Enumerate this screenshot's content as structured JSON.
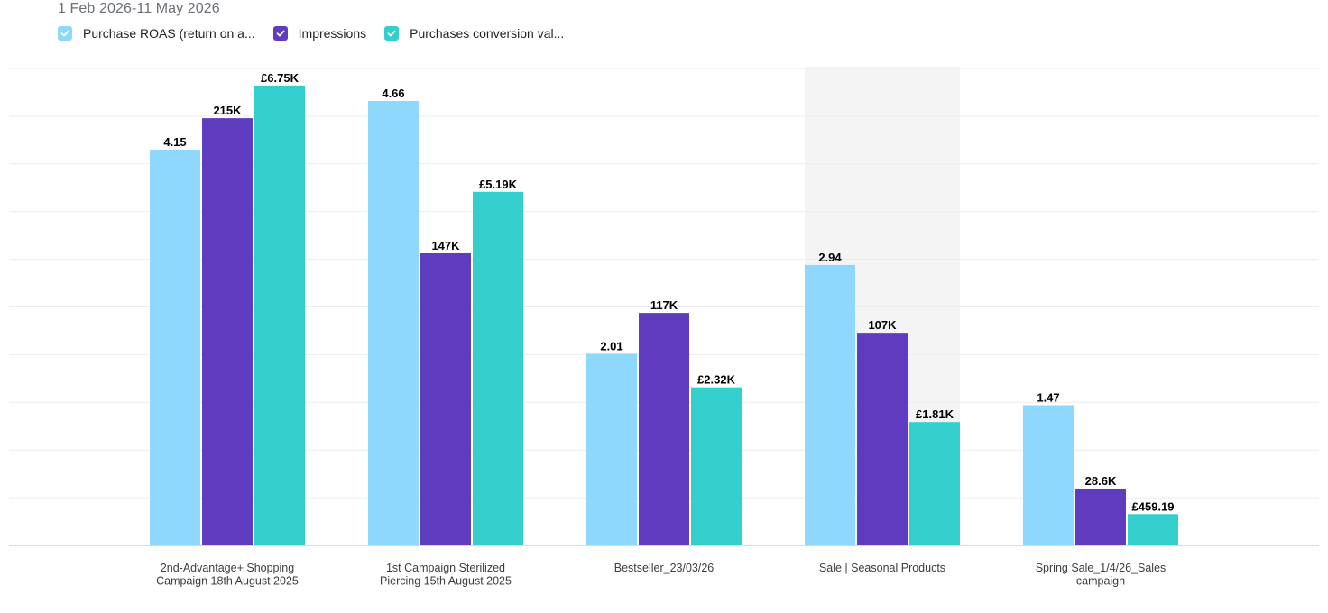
{
  "header": {
    "date_range": "1 Feb 2026-11 May 2026"
  },
  "legend": [
    {
      "label": "Purchase ROAS (return on a...",
      "color": "#8dd8fc",
      "checked": true
    },
    {
      "label": "Impressions",
      "color": "#5e3bbf",
      "checked": true
    },
    {
      "label": "Purchases conversion val...",
      "color": "#33cfcd",
      "checked": true
    }
  ],
  "colors": {
    "grid": "#ececec",
    "highlight": "#f4f4f4",
    "baseline": "#dcdcdc"
  },
  "chart_data": {
    "type": "bar",
    "categories": [
      [
        "2nd-Advantage+ Shopping",
        "Campaign 18th August 2025"
      ],
      [
        "1st Campaign Sterilized",
        "Piercing 15th August 2025"
      ],
      [
        "Bestseller_23/03/26"
      ],
      [
        "Sale | Seasonal Products"
      ],
      [
        "Spring Sale_1/4/26_Sales",
        "campaign"
      ]
    ],
    "highlighted_category_index": 3,
    "series": [
      {
        "name": "Purchase ROAS (return on a...",
        "color": "#8dd8fc",
        "values": [
          4.15,
          4.66,
          2.01,
          2.94,
          1.47
        ],
        "labels": [
          "4.15",
          "4.66",
          "2.01",
          "2.94",
          "1.47"
        ],
        "max": 5
      },
      {
        "name": "Impressions",
        "color": "#5e3bbf",
        "values": [
          215000,
          147000,
          117000,
          107000,
          28600
        ],
        "labels": [
          "215K",
          "147K",
          "117K",
          "107K",
          "28.6K"
        ],
        "max": 240000
      },
      {
        "name": "Purchases conversion val...",
        "color": "#33cfcd",
        "values": [
          6750,
          5190,
          2320,
          1810,
          459.19
        ],
        "labels": [
          "£6.75K",
          "£5.19K",
          "£2.32K",
          "£1.81K",
          "£459.19"
        ],
        "max": 7000
      }
    ],
    "grid": true
  }
}
